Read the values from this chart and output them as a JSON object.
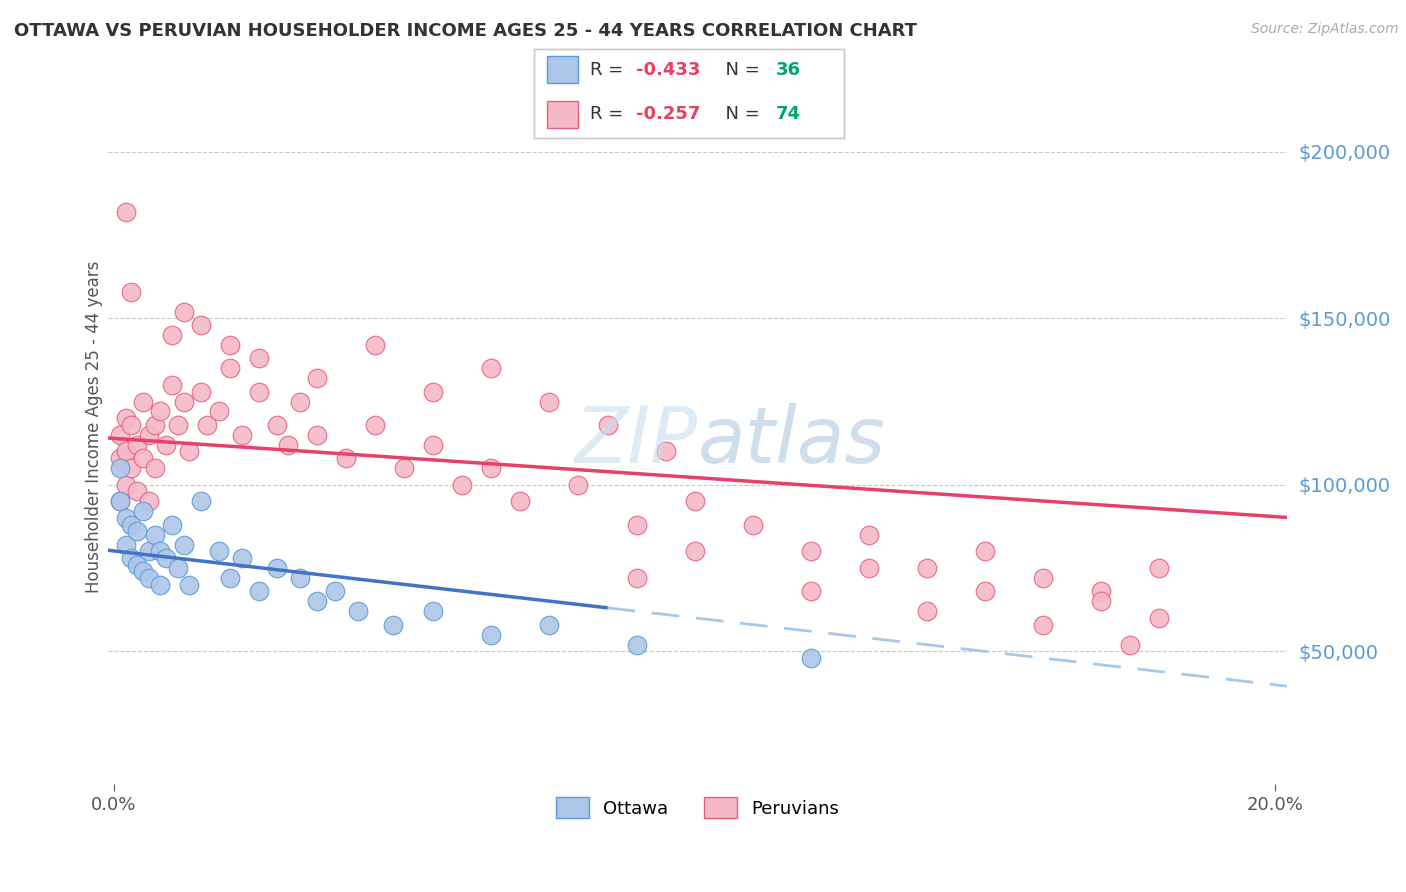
{
  "title": "OTTAWA VS PERUVIAN HOUSEHOLDER INCOME AGES 25 - 44 YEARS CORRELATION CHART",
  "source": "Source: ZipAtlas.com",
  "ylabel": "Householder Income Ages 25 - 44 years",
  "ytick_labels": [
    "$50,000",
    "$100,000",
    "$150,000",
    "$200,000"
  ],
  "ytick_values": [
    50000,
    100000,
    150000,
    200000
  ],
  "ylim": [
    10000,
    225000
  ],
  "xlim": [
    -0.001,
    0.202
  ],
  "background_color": "#ffffff",
  "grid_color": "#c8c8c8",
  "title_color": "#333333",
  "ytick_color": "#5b9bd5",
  "source_color": "#aaaaaa",
  "ottawa_color": "#aec6e8",
  "ottawa_edge_color": "#5b9bd5",
  "peruvian_color": "#f5b8c8",
  "peruvian_edge_color": "#e8607a",
  "ottawa_R": -0.433,
  "ottawa_N": 36,
  "peruvian_R": -0.257,
  "peruvian_N": 74,
  "ottawa_line_color": "#4472c4",
  "peruvian_line_color": "#e8406a",
  "ottawa_dash_color": "#a8c8e8",
  "legend_label_ottawa": "Ottawa",
  "legend_label_peruvian": "Peruvians",
  "ottawa_x": [
    0.001,
    0.001,
    0.002,
    0.002,
    0.003,
    0.003,
    0.004,
    0.004,
    0.005,
    0.005,
    0.006,
    0.006,
    0.007,
    0.008,
    0.008,
    0.009,
    0.01,
    0.011,
    0.012,
    0.013,
    0.015,
    0.018,
    0.02,
    0.022,
    0.025,
    0.028,
    0.032,
    0.035,
    0.038,
    0.042,
    0.048,
    0.055,
    0.065,
    0.075,
    0.09,
    0.12
  ],
  "ottawa_y": [
    105000,
    95000,
    90000,
    82000,
    88000,
    78000,
    86000,
    76000,
    92000,
    74000,
    80000,
    72000,
    85000,
    80000,
    70000,
    78000,
    88000,
    75000,
    82000,
    70000,
    95000,
    80000,
    72000,
    78000,
    68000,
    75000,
    72000,
    65000,
    68000,
    62000,
    58000,
    62000,
    55000,
    58000,
    52000,
    48000
  ],
  "peruvian_x": [
    0.001,
    0.001,
    0.001,
    0.002,
    0.002,
    0.002,
    0.003,
    0.003,
    0.004,
    0.004,
    0.005,
    0.005,
    0.006,
    0.006,
    0.007,
    0.007,
    0.008,
    0.009,
    0.01,
    0.011,
    0.012,
    0.013,
    0.015,
    0.016,
    0.018,
    0.02,
    0.022,
    0.025,
    0.028,
    0.03,
    0.032,
    0.035,
    0.04,
    0.045,
    0.05,
    0.055,
    0.06,
    0.065,
    0.07,
    0.08,
    0.09,
    0.1,
    0.11,
    0.12,
    0.13,
    0.14,
    0.15,
    0.16,
    0.17,
    0.18,
    0.09,
    0.1,
    0.12,
    0.13,
    0.14,
    0.15,
    0.16,
    0.17,
    0.175,
    0.18,
    0.01,
    0.015,
    0.025,
    0.035,
    0.045,
    0.055,
    0.065,
    0.075,
    0.085,
    0.095,
    0.002,
    0.003,
    0.012,
    0.02
  ],
  "peruvian_y": [
    108000,
    115000,
    95000,
    110000,
    100000,
    120000,
    118000,
    105000,
    112000,
    98000,
    125000,
    108000,
    115000,
    95000,
    118000,
    105000,
    122000,
    112000,
    130000,
    118000,
    125000,
    110000,
    128000,
    118000,
    122000,
    135000,
    115000,
    128000,
    118000,
    112000,
    125000,
    115000,
    108000,
    118000,
    105000,
    112000,
    100000,
    105000,
    95000,
    100000,
    88000,
    95000,
    88000,
    80000,
    85000,
    75000,
    80000,
    72000,
    68000,
    75000,
    72000,
    80000,
    68000,
    75000,
    62000,
    68000,
    58000,
    65000,
    52000,
    60000,
    145000,
    148000,
    138000,
    132000,
    142000,
    128000,
    135000,
    125000,
    118000,
    110000,
    182000,
    158000,
    152000,
    142000
  ]
}
